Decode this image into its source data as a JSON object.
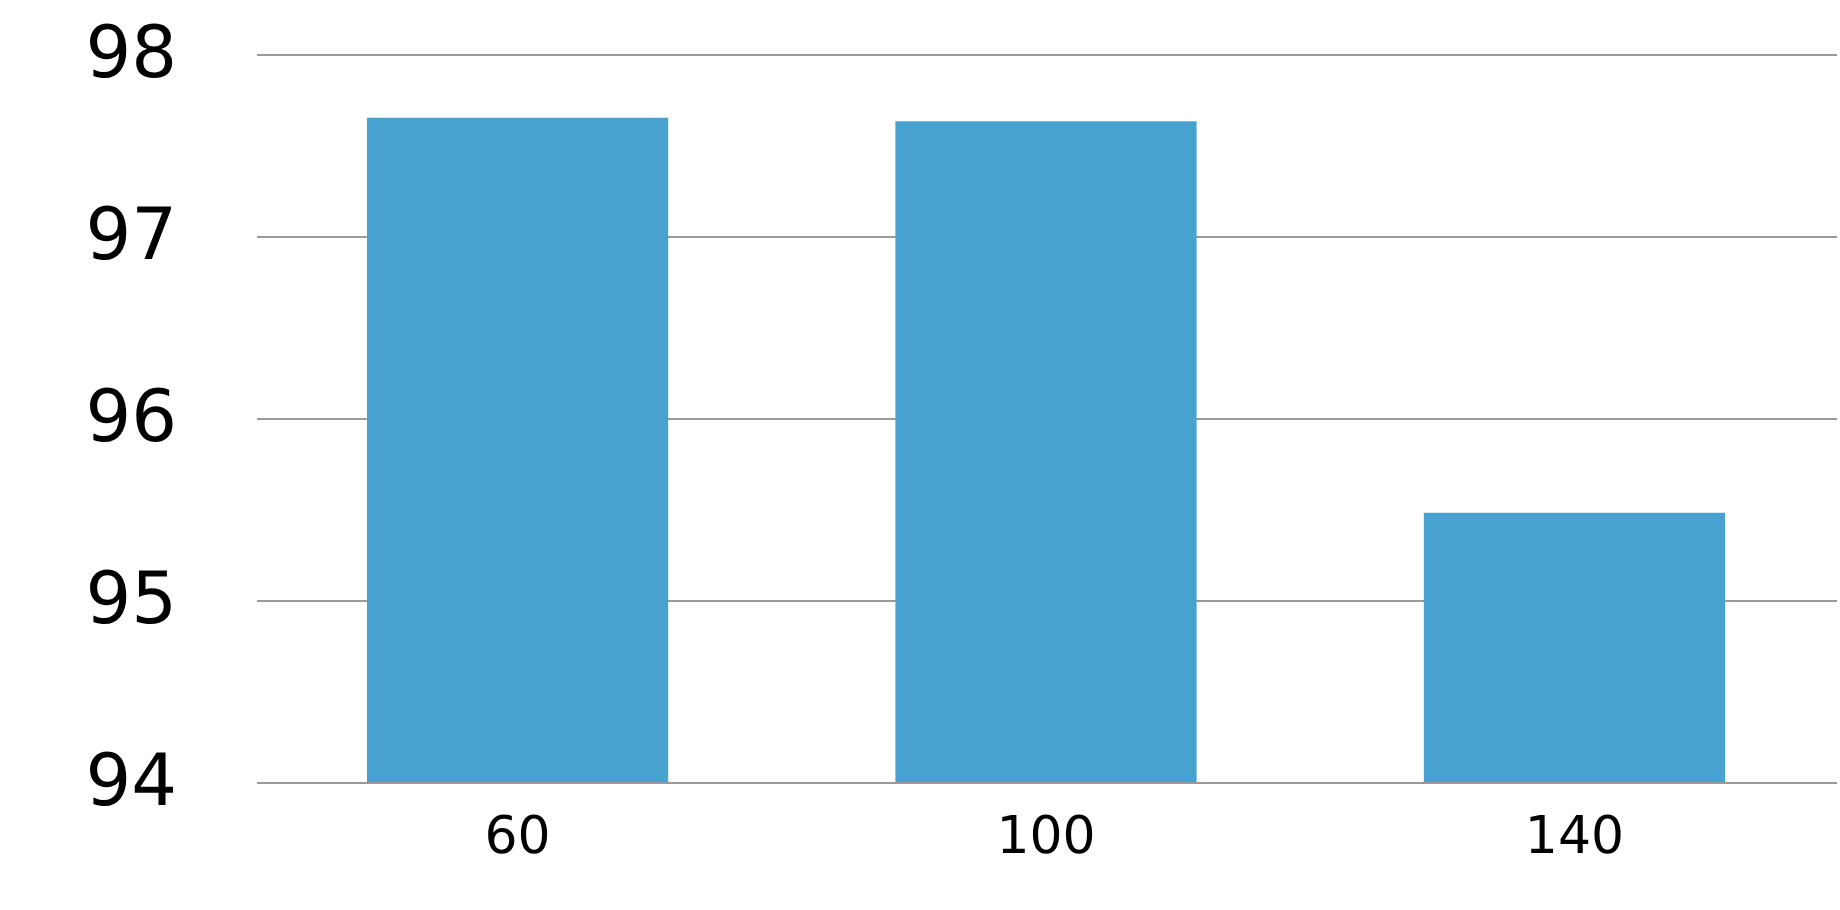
{
  "chart_data": {
    "type": "bar",
    "categories": [
      "60",
      "100",
      "140"
    ],
    "values": [
      97.65,
      97.63,
      95.48
    ],
    "color": "#47a2d0",
    "ylim": [
      94,
      98
    ],
    "yticks": [
      94,
      95,
      96,
      97,
      98
    ],
    "grid": "y"
  }
}
